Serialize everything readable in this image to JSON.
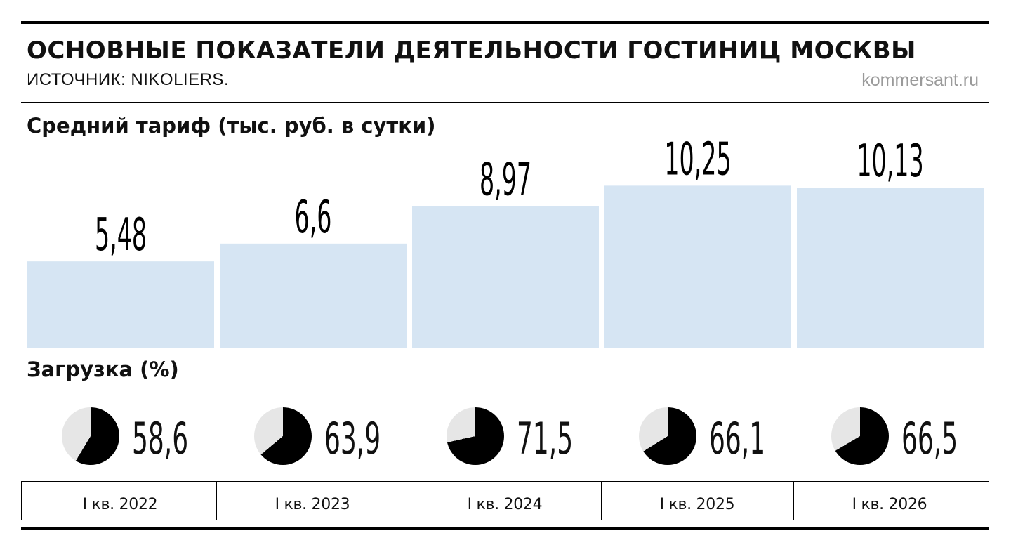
{
  "header": {
    "title": "ОСНОВНЫЕ ПОКАЗАТЕЛИ ДЕЯТЕЛЬНОСТИ ГОСТИНИЦ МОСКВЫ",
    "source": "ИСТОЧНИК: NIKOLIERS.",
    "site": "kommersant.ru"
  },
  "colors": {
    "bar": "#d6e5f3",
    "pie_filled": "#000000",
    "pie_empty": "#e6e6e6",
    "site_text": "#9a9a9a"
  },
  "chart_data": [
    {
      "type": "bar",
      "title": "Средний тариф (тыс. руб. в сутки)",
      "categories": [
        "I кв. 2022",
        "I кв. 2023",
        "I кв. 2024",
        "I кв. 2025",
        "I кв. 2026"
      ],
      "values": [
        5.48,
        6.6,
        8.97,
        10.25,
        10.13
      ],
      "value_labels": [
        "5,48",
        "6,6",
        "8,97",
        "10,25",
        "10,13"
      ],
      "ylim": [
        0,
        16
      ],
      "grid": false,
      "legend": "none"
    },
    {
      "type": "pie",
      "title": "Загрузка (%)",
      "categories": [
        "I кв. 2022",
        "I кв. 2023",
        "I кв. 2024",
        "I кв. 2025",
        "I кв. 2026"
      ],
      "values": [
        58.6,
        63.9,
        71.5,
        66.1,
        66.5
      ],
      "value_labels": [
        "58,6",
        "63,9",
        "71,5",
        "66,1",
        "66,5"
      ],
      "max": 100
    }
  ]
}
